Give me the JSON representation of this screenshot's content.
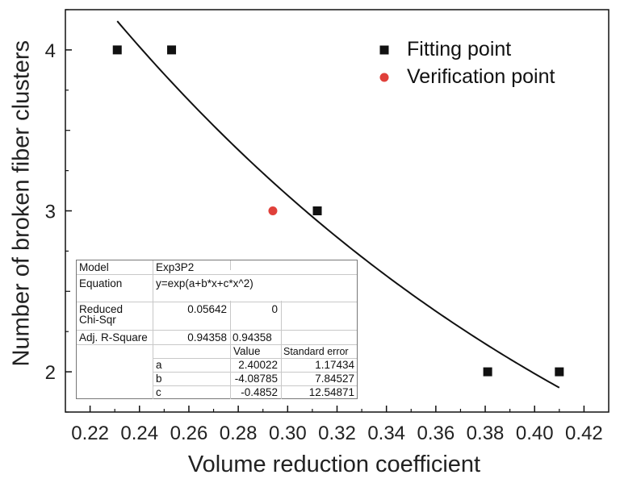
{
  "chart_data": {
    "type": "scatter",
    "xlabel": "Volume reduction coefficient",
    "ylabel": "Number of broken fiber clusters",
    "xlim": [
      0.21,
      0.43
    ],
    "ylim": [
      1.75,
      4.25
    ],
    "xticks": [
      0.22,
      0.24,
      0.26,
      0.28,
      0.3,
      0.32,
      0.34,
      0.36,
      0.38,
      0.4,
      0.42
    ],
    "xtick_labels": [
      "0.22",
      "0.24",
      "0.26",
      "0.28",
      "0.30",
      "0.32",
      "0.34",
      "0.36",
      "0.38",
      "0.40",
      "0.42"
    ],
    "yticks": [
      2,
      3,
      4
    ],
    "ytick_labels": [
      "2",
      "3",
      "4"
    ],
    "legend_position": "top-right",
    "series": [
      {
        "name": "Fitting point",
        "marker": "square",
        "color": "#111111",
        "points": [
          {
            "x": 0.231,
            "y": 4
          },
          {
            "x": 0.253,
            "y": 4
          },
          {
            "x": 0.312,
            "y": 3
          },
          {
            "x": 0.381,
            "y": 2
          },
          {
            "x": 0.41,
            "y": 2
          }
        ]
      },
      {
        "name": "Verification point",
        "marker": "circle",
        "color": "#e0403a",
        "points": [
          {
            "x": 0.294,
            "y": 3
          }
        ]
      }
    ],
    "fit_curve": {
      "model": "exp(a+b*x+c*x^2)",
      "a": 2.40022,
      "b": -4.08785,
      "c": -0.4852,
      "x_range": [
        0.231,
        0.41
      ],
      "color": "#111111"
    },
    "fit_table": {
      "model_label": "Model",
      "model_value": "Exp3P2",
      "equation_label": "Equation",
      "equation_value": "y=exp(a+b*x+c*x^2)",
      "chi_label_1": "Reduced",
      "chi_label_2": "Chi-Sqr",
      "chi_value": "0.05642",
      "chi_value_2": "0",
      "r2_label": "Adj. R-Square",
      "r2_value": "0.94358",
      "r2_value_2": "0.94358",
      "value_header": "Value",
      "stderr_header": "Standard error",
      "params": [
        {
          "name": "a",
          "value": "2.40022",
          "stderr": "1.17434"
        },
        {
          "name": "b",
          "value": "-4.08785",
          "stderr": "7.84527"
        },
        {
          "name": "c",
          "value": "-0.4852",
          "stderr": "12.54871"
        }
      ]
    }
  }
}
